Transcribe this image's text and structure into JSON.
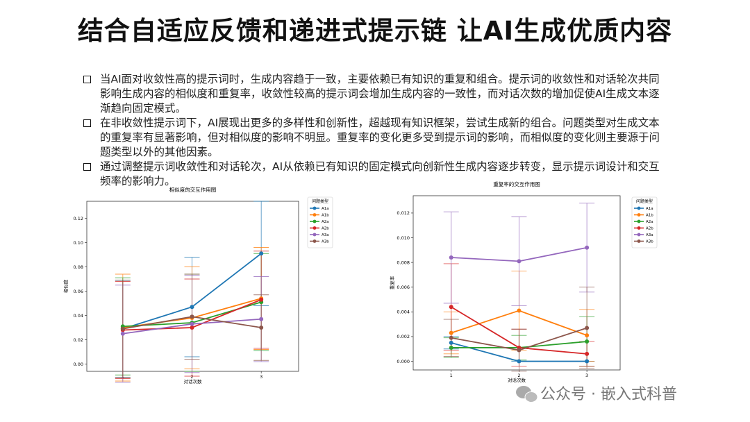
{
  "title": "结合自适应反馈和递进式提示链 让AI生成优质内容",
  "bullets": [
    "当AI面对收敛性高的提示词时，生成内容趋于一致，主要依赖已有知识的重复和组合。提示词的收敛性和对话轮次共同影响生成内容的相似度和重复率，收敛性较高的提示词会增加生成内容的一致性，而对话次数的增加促使AI生成文本逐渐趋向固定模式。",
    "在非收敛性提示词下，AI展现出更多的多样性和创新性，超越现有知识框架，尝试生成新的组合。问题类型对生成文本的重复率有显著影响，但对相似度的影响不明显。重复率的变化更多受到提示词的影响，而相似度的变化则主要源于问题类型以外的其他因素。",
    "通过调整提示词收敛性和对话轮次，AI从依赖已有知识的固定模式向创新性生成内容逐步转变，显示提示词设计和交互频率的影响力。"
  ],
  "watermark": "公众号 · 嵌入式科普",
  "chart_data": [
    {
      "type": "line",
      "title": "相似度的交互作用图",
      "xlabel": "对话次数",
      "ylabel": "相似度",
      "legend_title": "问题类型",
      "x": [
        1,
        2,
        3
      ],
      "xlim": [
        0.48,
        3.54
      ],
      "xticks": [
        1,
        2,
        3
      ],
      "ylim": [
        -0.006,
        0.134
      ],
      "yticks": [
        {
          "value": 0,
          "label": "0.00"
        },
        {
          "value": 0.02,
          "label": "0.02"
        },
        {
          "value": 0.04,
          "label": "0.04"
        },
        {
          "value": 0.06,
          "label": "0.06"
        },
        {
          "value": 0.08,
          "label": "0.08"
        },
        {
          "value": 0.1,
          "label": "0.10"
        },
        {
          "value": 0.12,
          "label": "0.12"
        }
      ],
      "series": [
        {
          "name": "A1a",
          "color": "#1f77b4",
          "values": [
            0.029,
            0.047,
            0.091
          ],
          "errors": [
            0.04,
            0.041,
            0.043
          ]
        },
        {
          "name": "A1b",
          "color": "#ff7f0e",
          "values": [
            0.03,
            0.038,
            0.054
          ],
          "errors": [
            0.044,
            0.042,
            0.042
          ]
        },
        {
          "name": "A2a",
          "color": "#2ca02c",
          "values": [
            0.031,
            0.034,
            0.051
          ],
          "errors": [
            0.04,
            0.04,
            0.04
          ]
        },
        {
          "name": "A2b",
          "color": "#d62728",
          "values": [
            0.028,
            0.03,
            0.053
          ],
          "errors": [
            0.04,
            0.04,
            0.04
          ]
        },
        {
          "name": "A3a",
          "color": "#9467bd",
          "values": [
            0.025,
            0.033,
            0.037
          ],
          "errors": [
            0.04,
            0.04,
            0.035
          ]
        },
        {
          "name": "A3b",
          "color": "#8c564b",
          "values": [
            0.029,
            0.039,
            0.03
          ],
          "errors": [
            0.04,
            0.035,
            0.027
          ]
        }
      ]
    },
    {
      "type": "line",
      "title": "重复率的交互作用图",
      "xlabel": "对话次数",
      "ylabel": "重复率",
      "legend_title": "问题类型",
      "x": [
        1,
        2,
        3
      ],
      "xlim": [
        0.44,
        3.49
      ],
      "xticks": [
        1,
        2,
        3
      ],
      "ylim": [
        -0.0007,
        0.0134
      ],
      "yticks": [
        {
          "value": 0,
          "label": "0.000"
        },
        {
          "value": 0.002,
          "label": "0.002"
        },
        {
          "value": 0.004,
          "label": "0.004"
        },
        {
          "value": 0.006,
          "label": "0.006"
        },
        {
          "value": 0.008,
          "label": "0.008"
        },
        {
          "value": 0.01,
          "label": "0.010"
        },
        {
          "value": 0.012,
          "label": "0.012"
        }
      ],
      "series": [
        {
          "name": "A1a",
          "color": "#1f77b4",
          "values": [
            0.0015,
            0.0,
            0.0
          ],
          "errors": [
            0.0005,
            0.0,
            0.0
          ]
        },
        {
          "name": "A1b",
          "color": "#ff7f0e",
          "values": [
            0.0023,
            0.0041,
            0.0021
          ],
          "errors": [
            0.0017,
            0.0032,
            0.0021
          ]
        },
        {
          "name": "A2a",
          "color": "#2ca02c",
          "values": [
            0.0011,
            0.0011,
            0.0016
          ],
          "errors": [
            0.0008,
            0.001,
            0.002
          ]
        },
        {
          "name": "A2b",
          "color": "#d62728",
          "values": [
            0.0044,
            0.0011,
            0.0006
          ],
          "errors": [
            0.0035,
            0.0015,
            0.001
          ]
        },
        {
          "name": "A3a",
          "color": "#9467bd",
          "values": [
            0.0084,
            0.0081,
            0.0092
          ],
          "errors": [
            0.0037,
            0.0036,
            0.0036
          ]
        },
        {
          "name": "A3b",
          "color": "#8c564b",
          "values": [
            0.0019,
            0.0009,
            0.0027
          ],
          "errors": [
            0.0015,
            0.0017,
            0.0033
          ]
        }
      ]
    }
  ]
}
